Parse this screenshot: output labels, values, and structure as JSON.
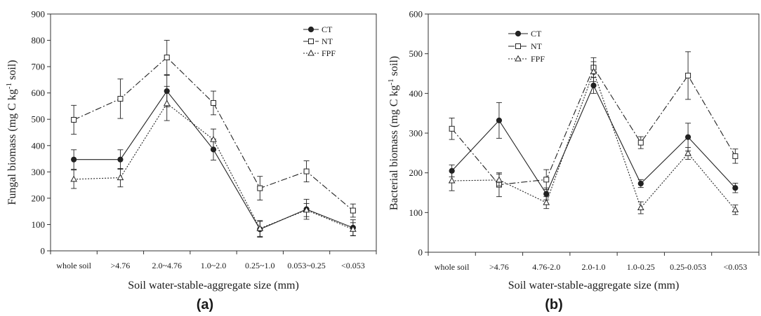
{
  "chart_data": [
    {
      "type": "line",
      "title": "",
      "caption": "(a)",
      "xlabel": "Soil water-stable-aggregate size (mm)",
      "ylabel": "Fungal biomass (mg C kg",
      "ylabel_sup": "-1",
      "ylabel_tail": " soil)",
      "ylim": [
        0,
        900
      ],
      "yticks": [
        "0",
        "100",
        "200",
        "300",
        "400",
        "500",
        "600",
        "700",
        "800",
        "900"
      ],
      "categories": [
        "whole soil",
        ">4.76",
        "2.0~4.76",
        "1.0~2.0",
        "0.25~1.0",
        "0.053~0.25",
        "<0.053"
      ],
      "legend_position": "top-right",
      "grid": false,
      "series": [
        {
          "name": "CT",
          "values": [
            347,
            347,
            607,
            385,
            82,
            158,
            88
          ],
          "errors": [
            37,
            37,
            60,
            40,
            30,
            38,
            30
          ]
        },
        {
          "name": "NT",
          "values": [
            498,
            578,
            735,
            562,
            238,
            302,
            153
          ],
          "errors": [
            55,
            75,
            65,
            45,
            45,
            40,
            25
          ]
        },
        {
          "name": "FPF",
          "values": [
            272,
            278,
            560,
            423,
            85,
            155,
            82
          ],
          "errors": [
            35,
            35,
            65,
            40,
            30,
            25,
            25
          ]
        }
      ]
    },
    {
      "type": "line",
      "title": "",
      "caption": "(b)",
      "xlabel": "Soil water-stable-aggregate size (mm)",
      "ylabel": "Bacterial biomass (mg C kg",
      "ylabel_sup": "-1",
      "ylabel_tail": " soil)",
      "ylim": [
        0,
        600
      ],
      "yticks": [
        "0",
        "100",
        "200",
        "300",
        "400",
        "500",
        "600"
      ],
      "categories": [
        "whole soil",
        ">4.76",
        "4.76-2.0",
        "2.0-1.0",
        "1.0-0.25",
        "0.25-0.053",
        "<0.053"
      ],
      "legend_position": "top-left",
      "grid": false,
      "series": [
        {
          "name": "CT",
          "values": [
            205,
            332,
            147,
            420,
            173,
            290,
            162
          ],
          "errors": [
            15,
            45,
            15,
            20,
            10,
            35,
            12
          ]
        },
        {
          "name": "NT",
          "values": [
            311,
            170,
            183,
            465,
            276,
            445,
            242
          ],
          "errors": [
            27,
            30,
            25,
            25,
            15,
            60,
            18
          ]
        },
        {
          "name": "FPF",
          "values": [
            180,
            182,
            125,
            455,
            112,
            249,
            107
          ],
          "errors": [
            25,
            15,
            15,
            25,
            15,
            15,
            12
          ]
        }
      ]
    }
  ],
  "series_style": {
    "CT": {
      "dash": "none",
      "marker": "filled-circle",
      "color": "#222222"
    },
    "NT": {
      "dash": "9,3,2,3",
      "marker": "open-square",
      "color": "#222222"
    },
    "FPF": {
      "dash": "2,2",
      "marker": "open-triangle",
      "color": "#222222"
    }
  }
}
